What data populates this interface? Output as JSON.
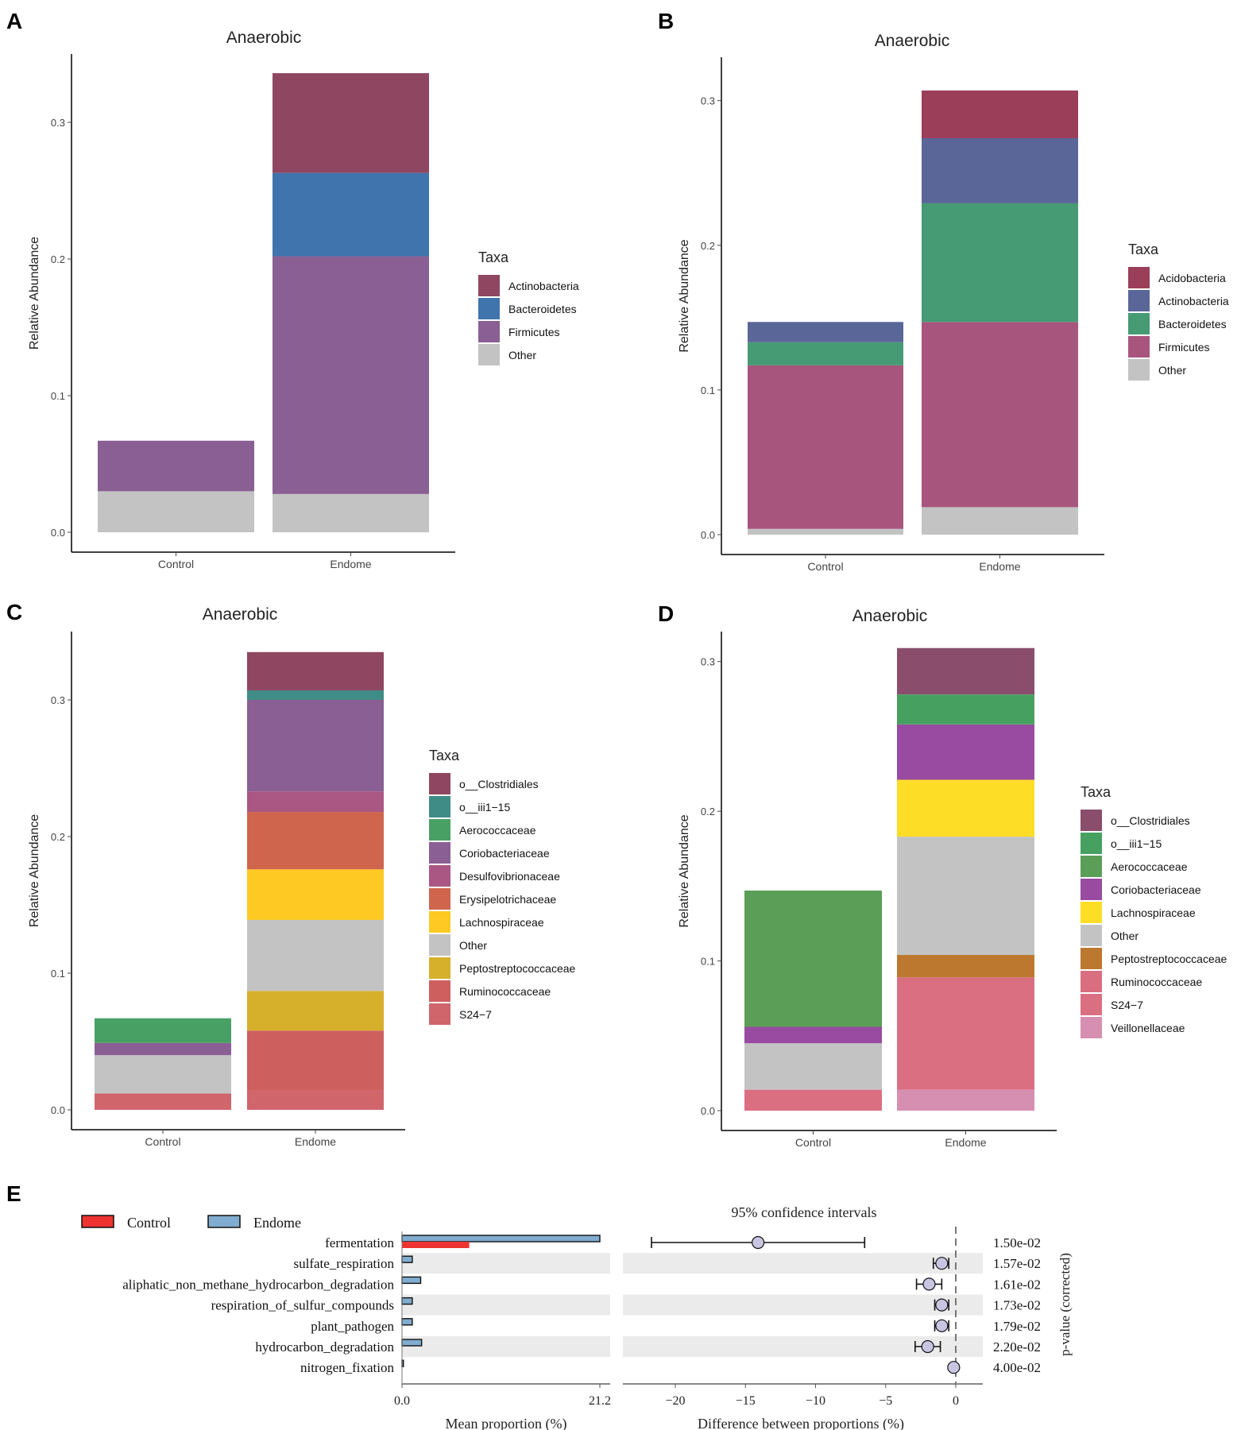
{
  "chart_data": [
    {
      "panel": "A",
      "type": "bar",
      "stacked": true,
      "title": "Anaerobic",
      "xlabel": "",
      "ylabel": "Relative Abundance",
      "categories": [
        "Control",
        "Endome"
      ],
      "ylim": [
        0,
        0.35
      ],
      "yticks": [
        0.0,
        0.1,
        0.2,
        0.3
      ],
      "ytick_labels": [
        "0.0",
        "0.1",
        "0.2",
        "0.3"
      ],
      "legend_title": "Taxa",
      "legend": [
        "Actinobacteria",
        "Bacteroidetes",
        "Firmicutes",
        "Other"
      ],
      "stack_order": [
        "Other",
        "Firmicutes",
        "Bacteroidetes",
        "Actinobacteria"
      ],
      "colors": {
        "Actinobacteria": "#8f4660",
        "Bacteroidetes": "#3f74ad",
        "Firmicutes": "#8a5f93",
        "Other": "#c3c3c3"
      },
      "series": [
        {
          "name": "Actinobacteria",
          "values": [
            0,
            0.073
          ]
        },
        {
          "name": "Bacteroidetes",
          "values": [
            0,
            0.061
          ]
        },
        {
          "name": "Firmicutes",
          "values": [
            0.037,
            0.174
          ]
        },
        {
          "name": "Other",
          "values": [
            0.03,
            0.028
          ]
        }
      ]
    },
    {
      "panel": "B",
      "type": "bar",
      "stacked": true,
      "title": "Anaerobic",
      "xlabel": "",
      "ylabel": "Relative Abundance",
      "categories": [
        "Control",
        "Endome"
      ],
      "ylim": [
        0,
        0.33
      ],
      "yticks": [
        0.0,
        0.1,
        0.2,
        0.3
      ],
      "ytick_labels": [
        "0.0",
        "0.1",
        "0.2",
        "0.3"
      ],
      "legend_title": "Taxa",
      "legend": [
        "Acidobacteria",
        "Actinobacteria",
        "Bacteroidetes",
        "Firmicutes",
        "Other"
      ],
      "stack_order": [
        "Other",
        "Firmicutes",
        "Bacteroidetes",
        "Actinobacteria",
        "Acidobacteria"
      ],
      "colors": {
        "Acidobacteria": "#9b3e59",
        "Actinobacteria": "#5a6698",
        "Bacteroidetes": "#469b74",
        "Firmicutes": "#a8557d",
        "Other": "#c3c3c3"
      },
      "series": [
        {
          "name": "Acidobacteria",
          "values": [
            0,
            0.033
          ]
        },
        {
          "name": "Actinobacteria",
          "values": [
            0.014,
            0.045
          ]
        },
        {
          "name": "Bacteroidetes",
          "values": [
            0.016,
            0.082
          ]
        },
        {
          "name": "Firmicutes",
          "values": [
            0.113,
            0.128
          ]
        },
        {
          "name": "Other",
          "values": [
            0.004,
            0.019
          ]
        }
      ]
    },
    {
      "panel": "C",
      "type": "bar",
      "stacked": true,
      "title": "Anaerobic",
      "xlabel": "",
      "ylabel": "Relative Abundance",
      "categories": [
        "Control",
        "Endome"
      ],
      "ylim": [
        0,
        0.35
      ],
      "yticks": [
        0.0,
        0.1,
        0.2,
        0.3
      ],
      "ytick_labels": [
        "0.0",
        "0.1",
        "0.2",
        "0.3"
      ],
      "legend_title": "Taxa",
      "legend": [
        "o__Clostridiales",
        "o__iii1−15",
        "Aerococcaceae",
        "Coriobacteriaceae",
        "Desulfovibrionaceae",
        "Erysipelotrichaceae",
        "Lachnospiraceae",
        "Other",
        "Peptostreptococcaceae",
        "Ruminococcaceae",
        "S24−7"
      ],
      "stack_order": [
        "S24−7",
        "Ruminococcaceae",
        "Peptostreptococcaceae",
        "Other",
        "Lachnospiraceae",
        "Erysipelotrichaceae",
        "Desulfovibrionaceae",
        "Coriobacteriaceae",
        "Aerococcaceae",
        "o__iii1−15",
        "o__Clostridiales"
      ],
      "colors": {
        "o__Clostridiales": "#8f4660",
        "o__iii1−15": "#3f8c86",
        "Aerococcaceae": "#48a065",
        "Coriobacteriaceae": "#8a5f93",
        "Desulfovibrionaceae": "#aa5783",
        "Erysipelotrichaceae": "#cf654d",
        "Lachnospiraceae": "#fdc922",
        "Other": "#c3c3c3",
        "Peptostreptococcaceae": "#d7b02b",
        "Ruminococcaceae": "#ce5f5f",
        "S24−7": "#d0656c"
      },
      "series": [
        {
          "name": "o__Clostridiales",
          "values": [
            0,
            0.028
          ]
        },
        {
          "name": "o__iii1−15",
          "values": [
            0,
            0.007
          ]
        },
        {
          "name": "Aerococcaceae",
          "values": [
            0.018,
            0
          ]
        },
        {
          "name": "Coriobacteriaceae",
          "values": [
            0.009,
            0.067
          ]
        },
        {
          "name": "Desulfovibrionaceae",
          "values": [
            0,
            0.015
          ]
        },
        {
          "name": "Erysipelotrichaceae",
          "values": [
            0,
            0.042
          ]
        },
        {
          "name": "Lachnospiraceae",
          "values": [
            0,
            0.037
          ]
        },
        {
          "name": "Other",
          "values": [
            0.028,
            0.052
          ]
        },
        {
          "name": "Peptostreptococcaceae",
          "values": [
            0,
            0.029
          ]
        },
        {
          "name": "Ruminococcaceae",
          "values": [
            0,
            0.044
          ]
        },
        {
          "name": "S24−7",
          "values": [
            0.012,
            0.014
          ]
        }
      ]
    },
    {
      "panel": "D",
      "type": "bar",
      "stacked": true,
      "title": "Anaerobic",
      "xlabel": "",
      "ylabel": "Relative Abundance",
      "categories": [
        "Control",
        "Endome"
      ],
      "ylim": [
        0,
        0.32
      ],
      "yticks": [
        0.0,
        0.1,
        0.2,
        0.3
      ],
      "ytick_labels": [
        "0.0",
        "0.1",
        "0.2",
        "0.3"
      ],
      "legend_title": "Taxa",
      "legend": [
        "o__Clostridiales",
        "o__iii1−15",
        "Aerococcaceae",
        "Coriobacteriaceae",
        "Lachnospiraceae",
        "Other",
        "Peptostreptococcaceae",
        "Ruminococcaceae",
        "S24−7",
        "Veillonellaceae"
      ],
      "stack_order": [
        "Veillonellaceae",
        "S24−7",
        "Ruminococcaceae",
        "Peptostreptococcaceae",
        "Other",
        "Lachnospiraceae",
        "Coriobacteriaceae",
        "Aerococcaceae",
        "o__iii1−15",
        "o__Clostridiales"
      ],
      "colors": {
        "o__Clostridiales": "#8a4e6c",
        "o__iii1−15": "#46a160",
        "Aerococcaceae": "#5b9e57",
        "Coriobacteriaceae": "#984ba0",
        "Lachnospiraceae": "#fedd26",
        "Other": "#c3c3c3",
        "Peptostreptococcaceae": "#bd7830",
        "Ruminococcaceae": "#d86e80",
        "S24−7": "#db6f82",
        "Veillonellaceae": "#d68fb0"
      },
      "series": [
        {
          "name": "o__Clostridiales",
          "values": [
            0,
            0.031
          ]
        },
        {
          "name": "o__iii1−15",
          "values": [
            0,
            0.02
          ]
        },
        {
          "name": "Aerococcaceae",
          "values": [
            0.091,
            0
          ]
        },
        {
          "name": "Coriobacteriaceae",
          "values": [
            0.011,
            0.037
          ]
        },
        {
          "name": "Lachnospiraceae",
          "values": [
            0,
            0.038
          ]
        },
        {
          "name": "Other",
          "values": [
            0.031,
            0.079
          ]
        },
        {
          "name": "Peptostreptococcaceae",
          "values": [
            0,
            0.015
          ]
        },
        {
          "name": "Ruminococcaceae",
          "values": [
            0,
            0
          ]
        },
        {
          "name": "S24−7",
          "values": [
            0.014,
            0.075
          ]
        },
        {
          "name": "Veillonellaceae",
          "values": [
            0,
            0.014
          ]
        }
      ]
    },
    {
      "panel": "E",
      "type": "bar",
      "subtype": "extended error bar",
      "legend": [
        {
          "name": "Control",
          "color": "#ee3331"
        },
        {
          "name": "Endome",
          "color": "#80acd0"
        }
      ],
      "categories": [
        "fermentation",
        "sulfate_respiration",
        "aliphatic_non_methane_hydrocarbon_degradation",
        "respiration_of_sulfur_compounds",
        "plant_pathogen",
        "hydrocarbon_degradation",
        "nitrogen_fixation"
      ],
      "mean_proportion": {
        "xlabel": "Mean proportion (%)",
        "xlim": [
          0,
          21.2
        ],
        "xtick_labels": [
          "0.0",
          "21.2"
        ],
        "series": [
          {
            "name": "Endome",
            "values": [
              21.2,
              1.1,
              2.0,
              1.1,
              1.1,
              2.1,
              0.15
            ]
          },
          {
            "name": "Control",
            "values": [
              7.2,
              0,
              0,
              0,
              0,
              0,
              0
            ]
          }
        ]
      },
      "difference": {
        "title": "95% confidence intervals",
        "xlabel": "Difference between proportions (%)",
        "xlim": [
          -24,
          2
        ],
        "xticks": [
          -20,
          -15,
          -10,
          -5,
          0
        ],
        "xtick_labels": [
          "−20",
          "−15",
          "−10",
          "−5",
          "0"
        ],
        "values": [
          -14.1,
          -1.0,
          -1.9,
          -1.0,
          -1.0,
          -2.0,
          -0.15
        ],
        "ci_low": [
          -21.7,
          -1.6,
          -2.8,
          -1.5,
          -1.5,
          -2.9,
          -0.2
        ],
        "ci_high": [
          -6.5,
          -0.5,
          -1.0,
          -0.5,
          -0.5,
          -1.1,
          -0.1
        ]
      },
      "p_label": "p-value (corrected)",
      "p_values": [
        "1.50e-02",
        "1.57e-02",
        "1.61e-02",
        "1.73e-02",
        "1.79e-02",
        "2.20e-02",
        "4.00e-02"
      ]
    }
  ],
  "panel_labels": [
    "A",
    "B",
    "C",
    "D",
    "E"
  ]
}
